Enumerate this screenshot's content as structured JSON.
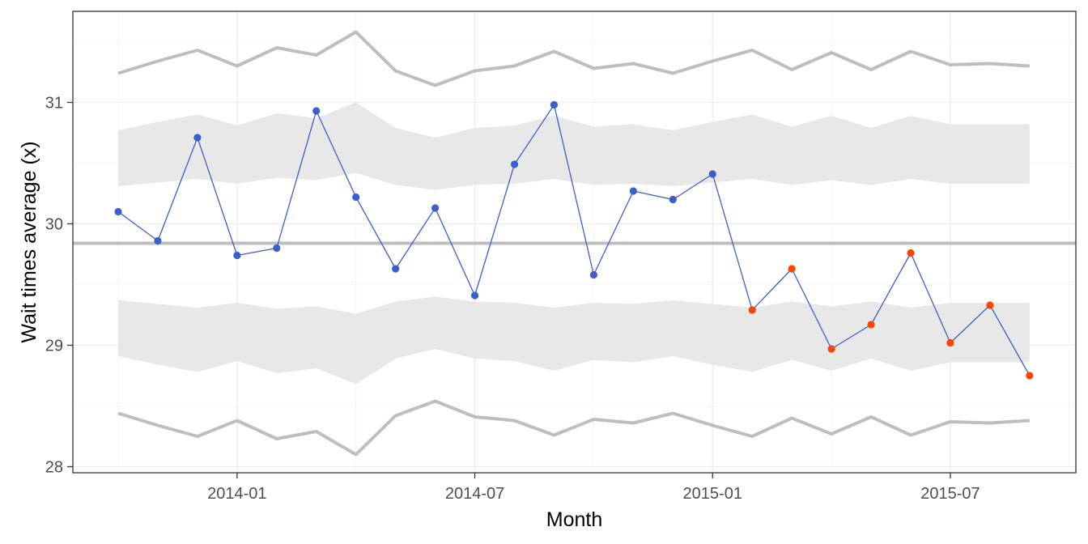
{
  "chart_data": {
    "type": "line",
    "title": "",
    "xlabel": "Month",
    "ylabel": "Wait times average (x)",
    "x": [
      "2013-10",
      "2013-11",
      "2013-12",
      "2014-01",
      "2014-02",
      "2014-03",
      "2014-04",
      "2014-05",
      "2014-06",
      "2014-07",
      "2014-08",
      "2014-09",
      "2014-10",
      "2014-11",
      "2014-12",
      "2015-01",
      "2015-02",
      "2015-03",
      "2015-04",
      "2015-05",
      "2015-06",
      "2015-07",
      "2015-08",
      "2015-09"
    ],
    "x_ticks": [
      "2014-01",
      "2014-07",
      "2015-01",
      "2015-07"
    ],
    "y_ticks": [
      28,
      29,
      30,
      31
    ],
    "ylim": [
      27.95,
      31.75
    ],
    "grid": true,
    "center_line": 29.84,
    "series": [
      {
        "values": [
          30.1,
          29.86,
          30.71,
          29.74,
          29.8,
          30.93,
          30.22,
          29.63,
          30.13,
          29.41,
          30.49,
          30.98,
          29.58,
          30.27,
          30.2,
          30.41,
          29.29,
          29.63,
          28.97,
          29.17,
          29.76,
          29.02,
          29.33,
          28.75
        ],
        "signal": [
          false,
          false,
          false,
          false,
          false,
          false,
          false,
          false,
          false,
          false,
          false,
          false,
          false,
          false,
          false,
          false,
          true,
          true,
          true,
          true,
          true,
          true,
          true,
          true
        ]
      }
    ],
    "upper_3sigma": [
      31.24,
      31.34,
      31.43,
      31.3,
      31.45,
      31.39,
      31.58,
      31.26,
      31.14,
      31.26,
      31.3,
      31.42,
      31.28,
      31.32,
      31.24,
      31.34,
      31.43,
      31.27,
      31.41,
      31.27,
      31.42,
      31.31,
      31.32,
      31.3
    ],
    "lower_3sigma": [
      28.44,
      28.34,
      28.25,
      28.38,
      28.23,
      28.29,
      28.1,
      28.42,
      28.54,
      28.41,
      28.38,
      28.26,
      28.39,
      28.36,
      28.44,
      28.34,
      28.25,
      28.4,
      28.27,
      28.41,
      28.26,
      28.37,
      28.36,
      28.38
    ],
    "upper_band": {
      "top": [
        30.77,
        30.84,
        30.9,
        30.81,
        30.91,
        30.87,
        31.0,
        30.79,
        30.71,
        30.79,
        30.81,
        30.89,
        30.8,
        30.82,
        30.77,
        30.84,
        30.9,
        30.8,
        30.89,
        30.79,
        30.89,
        30.82,
        30.82,
        30.82
      ],
      "bottom": [
        30.31,
        30.34,
        30.37,
        30.33,
        30.38,
        30.36,
        30.42,
        30.32,
        30.28,
        30.32,
        30.33,
        30.37,
        30.32,
        30.33,
        30.31,
        30.34,
        30.37,
        30.32,
        30.36,
        30.32,
        30.37,
        30.33,
        30.33,
        30.33
      ]
    },
    "lower_band": {
      "top": [
        29.37,
        29.34,
        29.31,
        29.35,
        29.3,
        29.32,
        29.26,
        29.36,
        29.4,
        29.36,
        29.35,
        29.31,
        29.35,
        29.34,
        29.37,
        29.34,
        29.31,
        29.36,
        29.32,
        29.36,
        29.31,
        29.35,
        29.35,
        29.35
      ],
      "bottom": [
        28.91,
        28.84,
        28.78,
        28.87,
        28.77,
        28.81,
        28.68,
        28.89,
        28.97,
        28.89,
        28.87,
        28.79,
        28.88,
        28.86,
        28.91,
        28.84,
        28.78,
        28.88,
        28.79,
        28.89,
        28.79,
        28.86,
        28.86,
        28.86
      ]
    },
    "colors": {
      "series": "#3a5fcd",
      "signal": "#ff4500",
      "limits": "#bebebe",
      "center": "#bebebe",
      "band": "#e8e8e8",
      "grid_major": "#ebebeb",
      "grid_minor": "#f5f5f5",
      "panel_border": "#333333"
    }
  }
}
